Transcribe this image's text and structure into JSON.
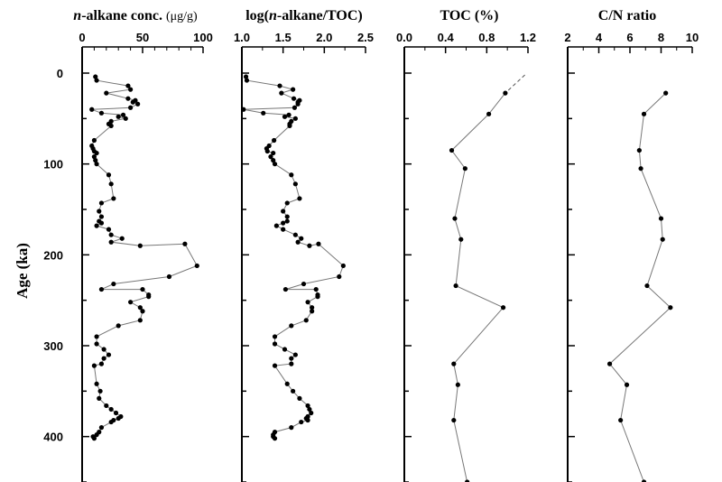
{
  "shared_axis": {
    "label": "Age (ka)",
    "ticks": [
      "0",
      "100",
      "200",
      "300",
      "400"
    ],
    "range": [
      0,
      450
    ],
    "inverted": true
  },
  "chart_data": [
    {
      "type": "line",
      "title_html": "<tspan font-style=\"italic\">n</tspan>-alkane conc. <tspan font-weight=\"normal\" font-size=\"14\">(μg/g)</tspan>",
      "xlabel": "n-alkane conc. (μg/g)",
      "xlim": [
        0,
        100
      ],
      "xticks": [
        "0",
        "50",
        "100"
      ],
      "line_color": "#777777",
      "series": [
        {
          "x": [
            11,
            12,
            38,
            40,
            20,
            38,
            44,
            42,
            46,
            40,
            8,
            16,
            34,
            30,
            36,
            24,
            22,
            24,
            10,
            8,
            9,
            10,
            12,
            10,
            11,
            12,
            22,
            24,
            26,
            16,
            14,
            16,
            14,
            16,
            12,
            22,
            24,
            33,
            24,
            48,
            85,
            95,
            72,
            26,
            16,
            50,
            55,
            55,
            40,
            48,
            50,
            48,
            30,
            12,
            12,
            18,
            22,
            18,
            16,
            10,
            12,
            15,
            14,
            20,
            24,
            28,
            32,
            30,
            26,
            24,
            16,
            14,
            12,
            9,
            10
          ],
          "y": [
            4,
            8,
            14,
            18,
            22,
            28,
            30,
            32,
            34,
            38,
            40,
            44,
            46,
            48,
            50,
            53,
            56,
            58,
            74,
            80,
            83,
            86,
            88,
            92,
            96,
            100,
            112,
            122,
            138,
            143,
            152,
            158,
            163,
            165,
            168,
            172,
            178,
            182,
            186,
            190,
            188,
            212,
            224,
            232,
            238,
            238,
            244,
            246,
            252,
            258,
            262,
            272,
            278,
            290,
            298,
            304,
            310,
            314,
            320,
            322,
            342,
            350,
            358,
            366,
            370,
            374,
            378,
            380,
            382,
            384,
            390,
            395,
            398,
            400,
            402
          ]
        }
      ]
    },
    {
      "type": "line",
      "title_html": "log(<tspan font-style=\"italic\">n</tspan>-alkane/TOC)",
      "xlabel": "log(n-alkane/TOC)",
      "xlim": [
        1.0,
        2.5
      ],
      "xticks": [
        "1.0",
        "1.5",
        "2.0",
        "2.5"
      ],
      "line_color": "#777777",
      "series": [
        {
          "x": [
            1.05,
            1.06,
            1.46,
            1.62,
            1.48,
            1.63,
            1.7,
            1.68,
            1.68,
            1.64,
            1.02,
            1.26,
            1.57,
            1.52,
            1.65,
            1.6,
            1.58,
            1.58,
            1.39,
            1.33,
            1.3,
            1.31,
            1.38,
            1.35,
            1.38,
            1.4,
            1.6,
            1.65,
            1.7,
            1.55,
            1.5,
            1.55,
            1.55,
            1.5,
            1.42,
            1.5,
            1.65,
            1.72,
            1.68,
            1.82,
            1.93,
            2.23,
            2.18,
            1.75,
            1.53,
            1.9,
            1.92,
            1.92,
            1.8,
            1.85,
            1.85,
            1.78,
            1.6,
            1.4,
            1.4,
            1.52,
            1.65,
            1.6,
            1.6,
            1.4,
            1.55,
            1.62,
            1.7,
            1.8,
            1.82,
            1.84,
            1.8,
            1.78,
            1.8,
            1.72,
            1.6,
            1.4,
            1.38,
            1.38,
            1.4
          ],
          "y": [
            4,
            8,
            14,
            18,
            22,
            28,
            30,
            32,
            34,
            38,
            40,
            44,
            46,
            48,
            50,
            53,
            56,
            58,
            74,
            80,
            83,
            86,
            88,
            92,
            96,
            100,
            112,
            122,
            138,
            143,
            152,
            158,
            163,
            165,
            168,
            172,
            178,
            182,
            186,
            190,
            188,
            212,
            224,
            232,
            238,
            238,
            244,
            246,
            252,
            258,
            262,
            272,
            278,
            290,
            298,
            304,
            310,
            314,
            320,
            322,
            342,
            350,
            358,
            366,
            370,
            374,
            378,
            380,
            382,
            384,
            390,
            395,
            398,
            400,
            402
          ]
        }
      ]
    },
    {
      "type": "line",
      "title_html": "TOC (%)",
      "xlabel": "TOC (%)",
      "xlim": [
        0.0,
        1.2
      ],
      "xticks": [
        "0.0",
        "0.4",
        "0.8",
        "1.2"
      ],
      "line_color": "#777777",
      "dashed_extension": {
        "x": [
          1.17,
          0.98
        ],
        "y": [
          2,
          22
        ]
      },
      "series": [
        {
          "x": [
            0.98,
            0.82,
            0.46,
            0.59,
            0.49,
            0.55,
            0.5,
            0.96,
            0.48,
            0.52,
            0.48,
            0.61
          ],
          "y": [
            22,
            45,
            85,
            105,
            160,
            183,
            234,
            258,
            320,
            343,
            382,
            450
          ]
        }
      ]
    },
    {
      "type": "line",
      "title_html": "C/N ratio",
      "xlabel": "C/N ratio",
      "xlim": [
        2,
        10
      ],
      "xticks": [
        "2",
        "4",
        "6",
        "8",
        "10"
      ],
      "line_color": "#777777",
      "series": [
        {
          "x": [
            8.3,
            6.9,
            6.6,
            6.7,
            8.0,
            8.1,
            7.1,
            8.6,
            4.7,
            5.8,
            5.4,
            6.9
          ],
          "y": [
            22,
            45,
            85,
            105,
            160,
            183,
            234,
            258,
            320,
            343,
            382,
            450
          ]
        }
      ]
    }
  ]
}
